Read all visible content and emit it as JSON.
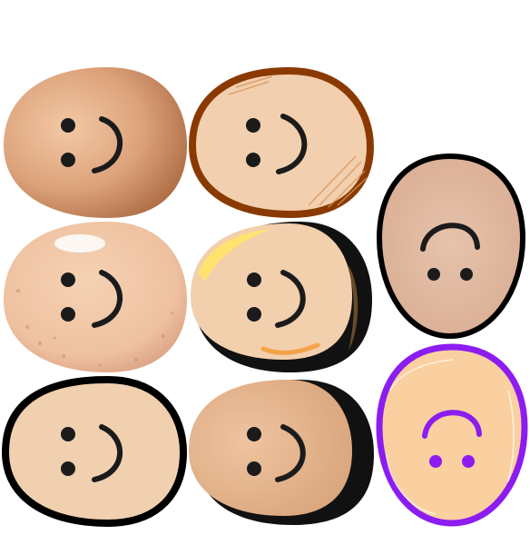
{
  "sticker_sheet": {
    "description_count": 8,
    "stickers": [
      {
        "id": "egg-1",
        "style": "gradient-tan",
        "expression": "smile",
        "orientation": "sideways",
        "fill": "#e2ad87",
        "outline": "none",
        "feature_color": "#1b1b1b"
      },
      {
        "id": "egg-2",
        "style": "hatched-outlined",
        "expression": "smile",
        "orientation": "sideways",
        "fill": "#f2cfae",
        "outline": "#8a3a00",
        "feature_color": "#1b1b1b"
      },
      {
        "id": "egg-3",
        "style": "watercolor-outlined",
        "expression": "smile",
        "orientation": "upside-down",
        "fill": "#e3bfa6",
        "outline": "#000000",
        "feature_color": "#1b1b1b"
      },
      {
        "id": "egg-4",
        "style": "speckled",
        "expression": "smile",
        "orientation": "sideways",
        "fill": "#f1c9a8",
        "outline": "none",
        "feature_color": "#1b1b1b"
      },
      {
        "id": "egg-5",
        "style": "cartoon-shaded",
        "expression": "smile",
        "orientation": "sideways",
        "fill": "#f2cfad",
        "outline": "#111111",
        "feature_color": "#1b1b1b"
      },
      {
        "id": "egg-6",
        "style": "flat-outlined",
        "expression": "smile",
        "orientation": "sideways",
        "fill": "#f1d0b0",
        "outline": "#000000",
        "feature_color": "#1b1b1b"
      },
      {
        "id": "egg-7",
        "style": "soft-shadow",
        "expression": "smile",
        "orientation": "sideways",
        "fill": "#e9b88f",
        "outline": "#111111",
        "feature_color": "#1b1b1b"
      },
      {
        "id": "egg-8",
        "style": "sketchy-purple",
        "expression": "smile",
        "orientation": "upside-down",
        "fill": "#fbd0a0",
        "outline": "#8c1cf0",
        "feature_color": "#8c1cf0"
      }
    ]
  }
}
